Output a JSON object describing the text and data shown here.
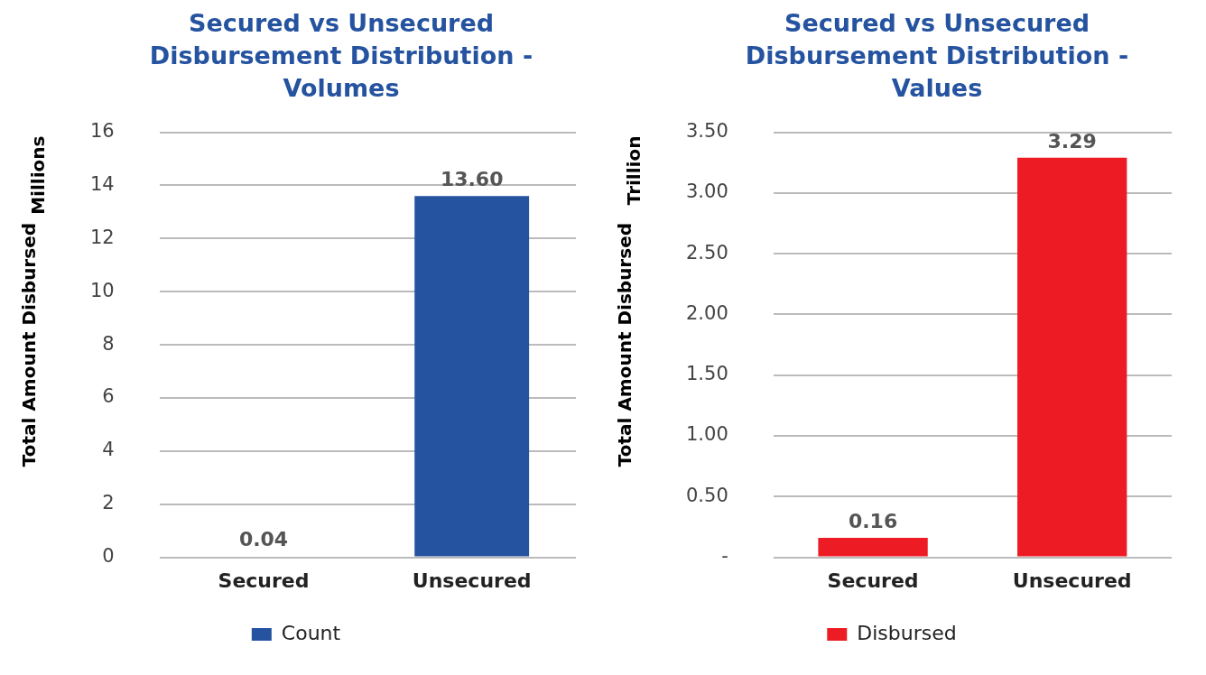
{
  "chart_data": [
    {
      "type": "bar",
      "title": "Secured vs Unsecured Disbursement Distribution - Volumes",
      "ylabel": "Total Amount Disbursed",
      "annotations": [
        "Millions"
      ],
      "categories": [
        "Secured",
        "Unsecured"
      ],
      "series": [
        {
          "name": "Count",
          "color": "#2553a0",
          "values": [
            0.04,
            13.6
          ],
          "value_labels": [
            "0.04",
            "13.60"
          ]
        }
      ],
      "ylim": [
        0,
        16
      ],
      "yticks": [
        0,
        2,
        4,
        6,
        8,
        10,
        12,
        14,
        16
      ],
      "grid": "y",
      "legend": "bottom"
    },
    {
      "type": "bar",
      "title": "Secured vs Unsecured Disbursement Distribution - Values",
      "ylabel": "Total Amount Disbursed",
      "annotations": [
        "Trillion"
      ],
      "categories": [
        "Secured",
        "Unsecured"
      ],
      "series": [
        {
          "name": "Disbursed",
          "color": "#ed1c24",
          "values": [
            0.16,
            3.29
          ],
          "value_labels": [
            "0.16",
            "3.29"
          ]
        }
      ],
      "ylim": [
        0,
        3.5
      ],
      "yticks": [
        {
          "value": 0,
          "label": "-"
        },
        {
          "value": 0.5,
          "label": "0.50"
        },
        {
          "value": 1,
          "label": "1.00"
        },
        {
          "value": 1.5,
          "label": "1.50"
        },
        {
          "value": 2,
          "label": "2.00"
        },
        {
          "value": 2.5,
          "label": "2.50"
        },
        {
          "value": 3,
          "label": "3.00"
        },
        {
          "value": 3.5,
          "label": "3.50"
        }
      ],
      "grid": "y",
      "legend": "bottom"
    }
  ]
}
